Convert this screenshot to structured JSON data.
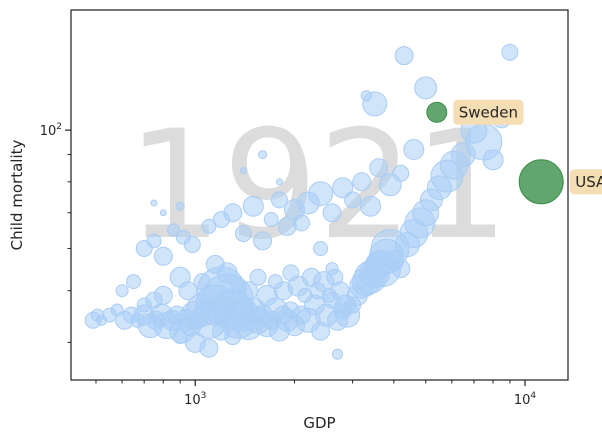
{
  "chart_data": {
    "type": "scatter",
    "title": "",
    "watermark": "1921",
    "xlabel": "GDP",
    "ylabel": "Child mortality",
    "x_scale": "log",
    "y_scale": "log",
    "xlim": [
      420,
      13500
    ],
    "ylim": [
      34,
      168
    ],
    "x_ticks": [
      {
        "value": 1000,
        "base": "10",
        "exp": "3"
      },
      {
        "value": 10000,
        "base": "10",
        "exp": "4"
      }
    ],
    "y_ticks": [
      {
        "value": 100,
        "base": "10",
        "exp": "2"
      }
    ],
    "grid": false,
    "colors": {
      "points": "#a9cdf5",
      "highlight": "#3c8f4a",
      "annotation_box": "#f5deb3",
      "watermark": "#dcdcdc",
      "axis": "#262626"
    },
    "points": [
      [
        490,
        44,
        8
      ],
      [
        505,
        45,
        6
      ],
      [
        520,
        44,
        5
      ],
      [
        550,
        45,
        7
      ],
      [
        580,
        46,
        6
      ],
      [
        610,
        44,
        9
      ],
      [
        640,
        45,
        8
      ],
      [
        670,
        44,
        7
      ],
      [
        700,
        45,
        10
      ],
      [
        730,
        43,
        12
      ],
      [
        760,
        44,
        9
      ],
      [
        790,
        45,
        11
      ],
      [
        820,
        43,
        13
      ],
      [
        850,
        44,
        10
      ],
      [
        880,
        45,
        9
      ],
      [
        910,
        42,
        12
      ],
      [
        940,
        44,
        11
      ],
      [
        970,
        43,
        10
      ],
      [
        1000,
        45,
        14
      ],
      [
        1050,
        46,
        16
      ],
      [
        1100,
        44,
        18
      ],
      [
        1150,
        47,
        20
      ],
      [
        1200,
        50,
        24
      ],
      [
        1250,
        48,
        26
      ],
      [
        1300,
        46,
        20
      ],
      [
        1350,
        44,
        18
      ],
      [
        1400,
        45,
        16
      ],
      [
        1450,
        43,
        14
      ],
      [
        1500,
        46,
        12
      ],
      [
        1550,
        44,
        13
      ],
      [
        1600,
        45,
        10
      ],
      [
        1650,
        43,
        11
      ],
      [
        1700,
        44,
        9
      ],
      [
        1750,
        46,
        12
      ],
      [
        1800,
        42,
        10
      ],
      [
        1850,
        45,
        9
      ],
      [
        1900,
        44,
        11
      ],
      [
        1950,
        46,
        8
      ],
      [
        2000,
        43,
        10
      ],
      [
        2100,
        45,
        9
      ],
      [
        2200,
        44,
        12
      ],
      [
        2300,
        47,
        10
      ],
      [
        2400,
        42,
        9
      ],
      [
        2500,
        45,
        11
      ],
      [
        2600,
        48,
        8
      ],
      [
        2700,
        44,
        10
      ],
      [
        2800,
        46,
        9
      ],
      [
        2900,
        45,
        12
      ],
      [
        3000,
        47,
        8
      ],
      [
        3100,
        49,
        10
      ],
      [
        3200,
        51,
        12
      ],
      [
        3300,
        52,
        14
      ],
      [
        3400,
        53,
        16
      ],
      [
        3500,
        54,
        15
      ],
      [
        3600,
        56,
        13
      ],
      [
        3700,
        55,
        18
      ],
      [
        3800,
        58,
        17
      ],
      [
        3900,
        60,
        19
      ],
      [
        4000,
        57,
        10
      ],
      [
        4200,
        55,
        9
      ],
      [
        4400,
        61,
        12
      ],
      [
        4600,
        64,
        14
      ],
      [
        4800,
        67,
        15
      ],
      [
        5000,
        70,
        13
      ],
      [
        5200,
        74,
        11
      ],
      [
        5500,
        78,
        12
      ],
      [
        5800,
        82,
        16
      ],
      [
        6100,
        86,
        14
      ],
      [
        6500,
        90,
        12
      ],
      [
        7000,
        100,
        13
      ],
      [
        7500,
        95,
        18
      ],
      [
        8000,
        88,
        10
      ],
      [
        8500,
        105,
        9
      ],
      [
        9000,
        140,
        8
      ],
      [
        700,
        60,
        8
      ],
      [
        750,
        62,
        7
      ],
      [
        800,
        58,
        9
      ],
      [
        860,
        65,
        6
      ],
      [
        920,
        63,
        7
      ],
      [
        980,
        61,
        8
      ],
      [
        1100,
        66,
        7
      ],
      [
        1200,
        68,
        8
      ],
      [
        1300,
        70,
        9
      ],
      [
        1400,
        64,
        8
      ],
      [
        1500,
        72,
        10
      ],
      [
        1600,
        62,
        9
      ],
      [
        1700,
        68,
        7
      ],
      [
        1800,
        74,
        8
      ],
      [
        1900,
        66,
        9
      ],
      [
        2000,
        71,
        10
      ],
      [
        2100,
        67,
        8
      ],
      [
        2200,
        73,
        11
      ],
      [
        2400,
        76,
        12
      ],
      [
        2600,
        70,
        9
      ],
      [
        2800,
        78,
        10
      ],
      [
        3000,
        74,
        8
      ],
      [
        3200,
        80,
        9
      ],
      [
        3400,
        72,
        10
      ],
      [
        3600,
        85,
        9
      ],
      [
        3900,
        79,
        11
      ],
      [
        4200,
        83,
        8
      ],
      [
        4600,
        92,
        10
      ],
      [
        5000,
        120,
        11
      ],
      [
        3500,
        112,
        12
      ],
      [
        3300,
        116,
        5
      ],
      [
        4300,
        138,
        9
      ],
      [
        2400,
        60,
        7
      ],
      [
        2600,
        55,
        6
      ],
      [
        900,
        53,
        10
      ],
      [
        950,
        50,
        9
      ],
      [
        1050,
        52,
        8
      ],
      [
        1150,
        56,
        9
      ],
      [
        1250,
        54,
        10
      ],
      [
        1350,
        51,
        8
      ],
      [
        1450,
        50,
        9
      ],
      [
        1550,
        53,
        8
      ],
      [
        1650,
        49,
        10
      ],
      [
        1750,
        52,
        7
      ],
      [
        1850,
        50,
        9
      ],
      [
        1950,
        54,
        8
      ],
      [
        2050,
        51,
        10
      ],
      [
        2150,
        49,
        7
      ],
      [
        2250,
        53,
        9
      ],
      [
        2350,
        50,
        8
      ],
      [
        2450,
        52,
        10
      ],
      [
        2550,
        49,
        7
      ],
      [
        2650,
        53,
        8
      ],
      [
        2750,
        50,
        9
      ],
      [
        2850,
        47,
        10
      ],
      [
        1200,
        42,
        9
      ],
      [
        1300,
        41,
        8
      ],
      [
        1000,
        40,
        10
      ],
      [
        900,
        41,
        7
      ],
      [
        1100,
        39,
        9
      ],
      [
        700,
        47,
        7
      ],
      [
        750,
        48,
        8
      ],
      [
        800,
        49,
        9
      ],
      [
        600,
        50,
        6
      ],
      [
        650,
        52,
        7
      ],
      [
        1600,
        90,
        4
      ],
      [
        2700,
        38,
        5
      ],
      [
        900,
        72,
        4
      ],
      [
        1800,
        80,
        3
      ],
      [
        1400,
        84,
        3
      ],
      [
        750,
        73,
        3
      ],
      [
        800,
        70,
        3
      ]
    ],
    "highlights": [
      {
        "label": "Sweden",
        "x": 5400,
        "y": 108,
        "size": 10
      },
      {
        "label": "USA",
        "x": 11200,
        "y": 80,
        "size": 22
      }
    ]
  }
}
